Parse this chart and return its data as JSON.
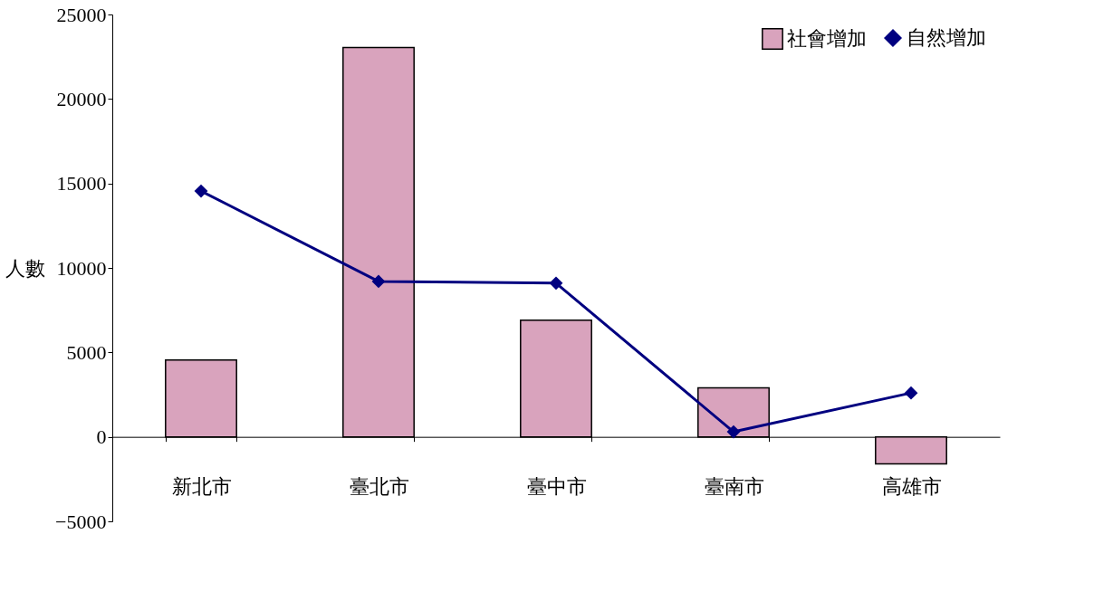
{
  "chart_data": {
    "type": "bar",
    "ylabel": "人數",
    "categories": [
      "新北市",
      "臺北市",
      "臺中市",
      "臺南市",
      "高雄市"
    ],
    "series": [
      {
        "name": "社會增加",
        "color": "#d9a3bd",
        "values": [
          4550,
          23050,
          6900,
          2900,
          -1600
        ]
      },
      {
        "name": "自然增加",
        "type": "line",
        "color": "#000080",
        "marker": "diamond",
        "values": [
          14550,
          9200,
          9100,
          300,
          2600
        ]
      }
    ],
    "ylim": [
      -5000,
      25000
    ],
    "yticks": [
      -5000,
      0,
      5000,
      10000,
      15000,
      20000,
      25000
    ],
    "grid": false,
    "legend": "top right"
  }
}
